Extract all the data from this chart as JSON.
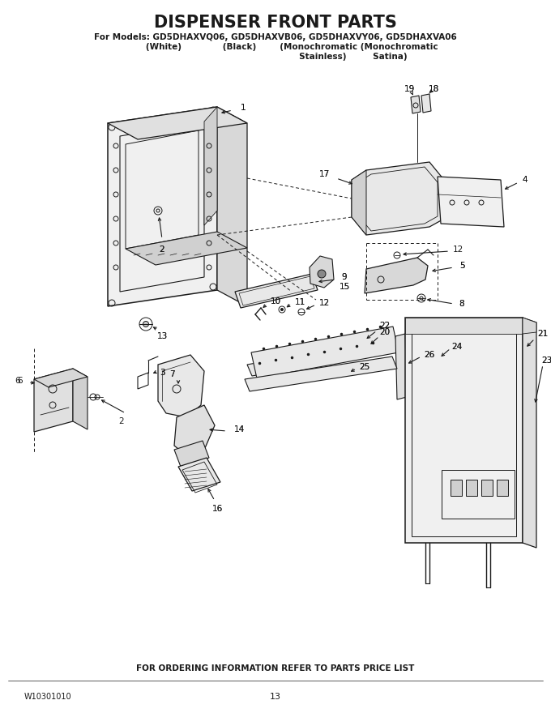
{
  "title": "DISPENSER FRONT PARTS",
  "sub1": "For Models: GD5DHAXVQ06, GD5DHAXVB06, GD5DHAXVY06, GD5DHAXVA06",
  "sub2a": "(White)",
  "sub2b": "(Black)",
  "sub2c": "(Monochromatic (Monochromatic",
  "sub3": "Stainless)         Satina)",
  "footer_left": "W10301010",
  "footer_mid": "13",
  "footer_top": "FOR ORDERING INFORMATION REFER TO PARTS PRICE LIST",
  "bg": "#ffffff",
  "lc": "#1a1a1a"
}
